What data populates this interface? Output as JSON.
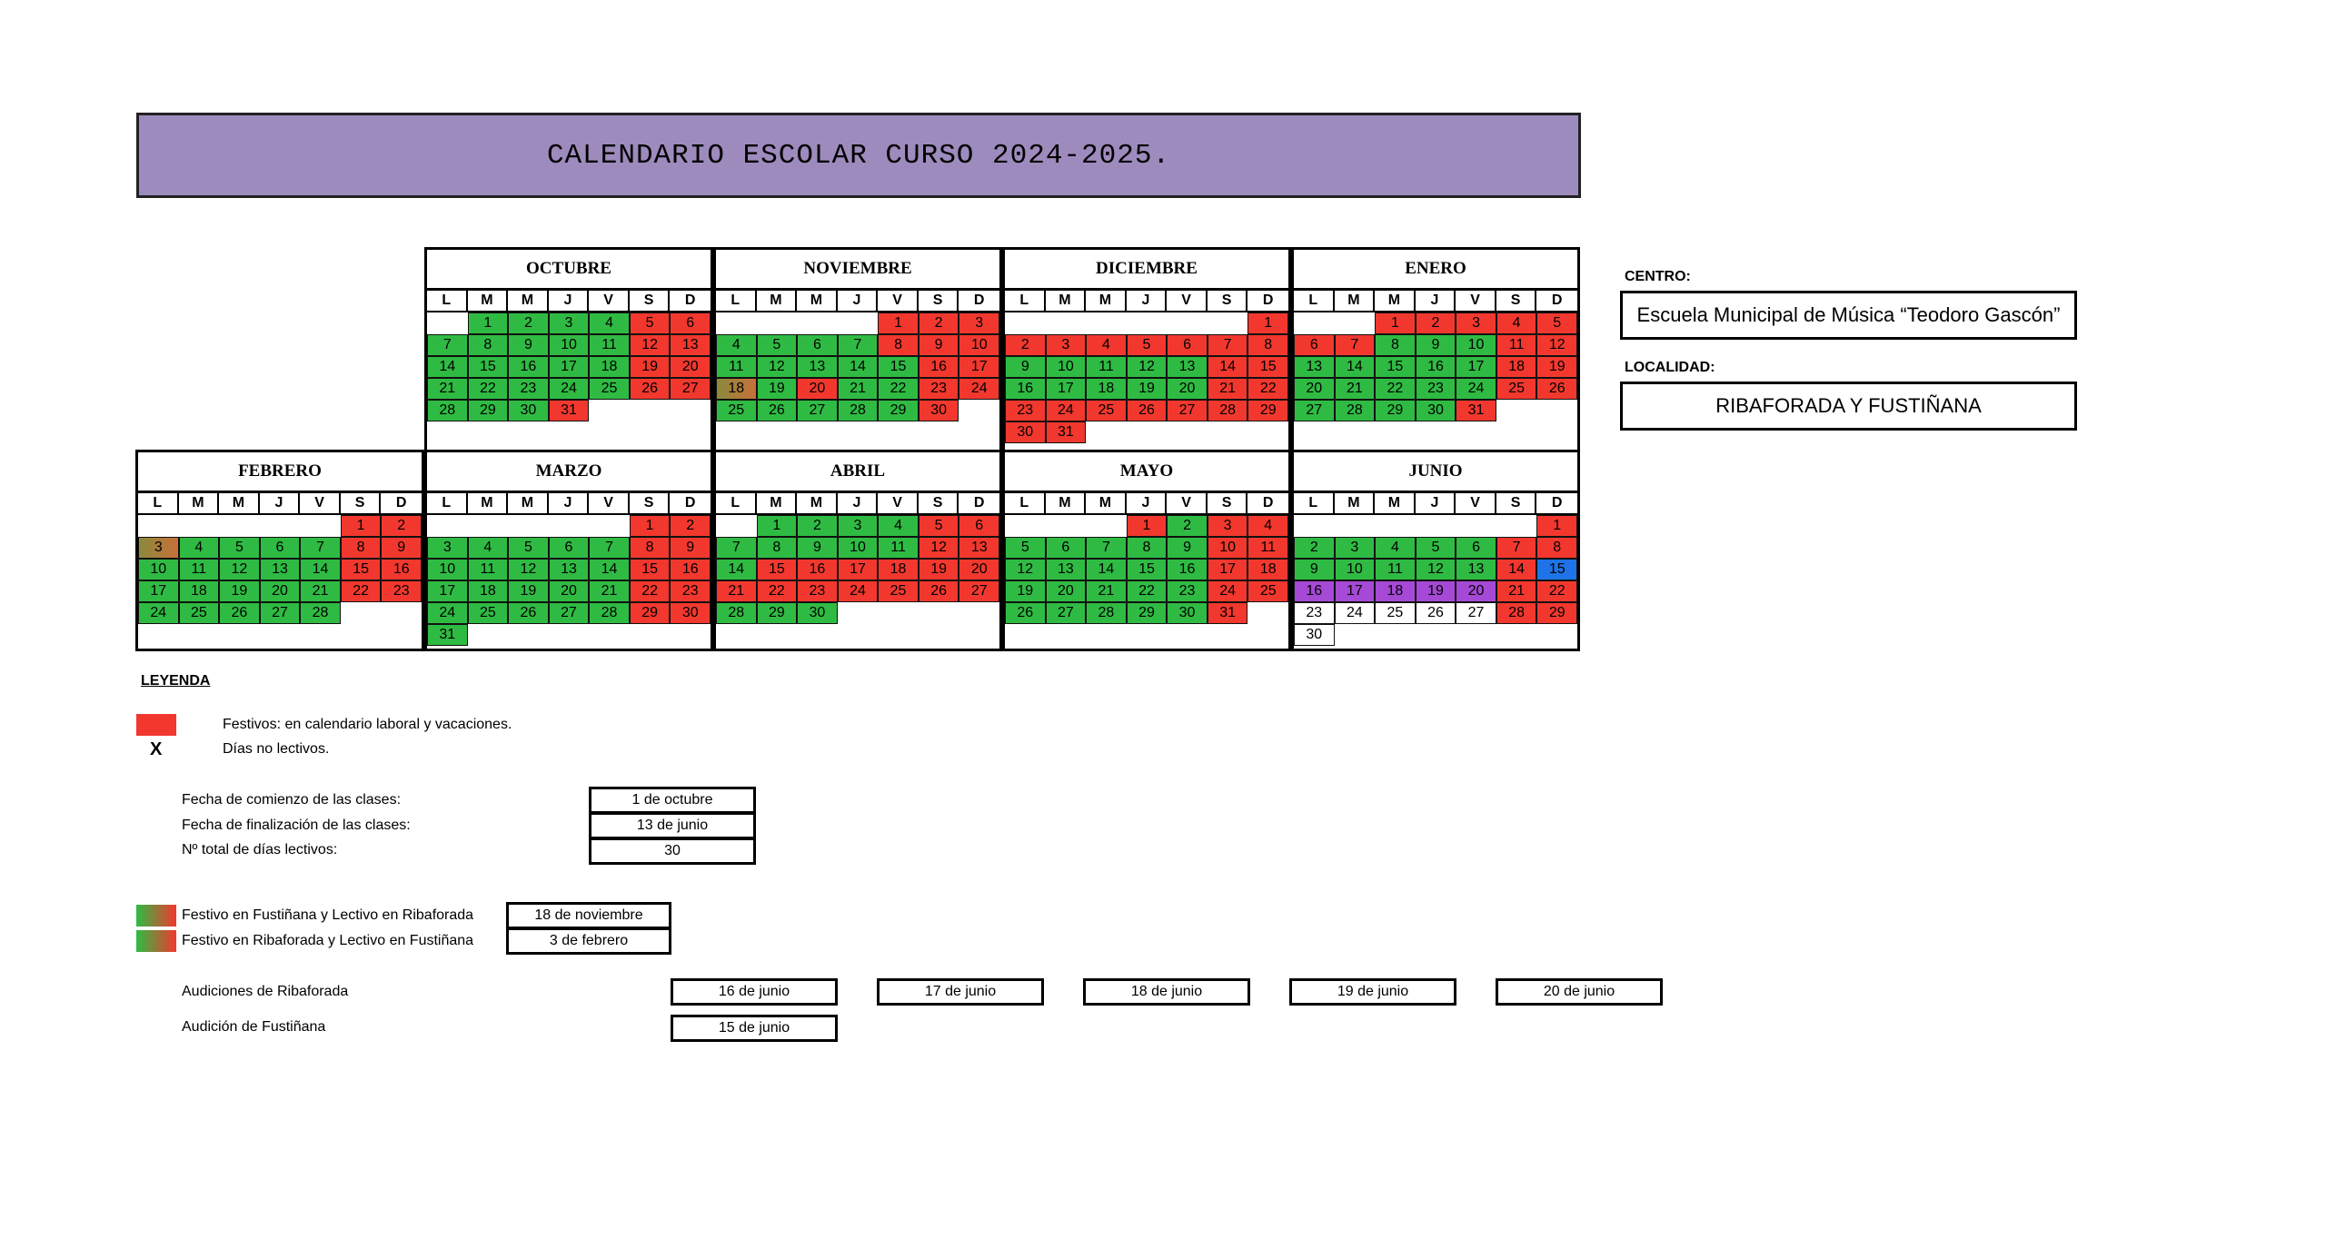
{
  "title": "CALENDARIO ESCOLAR CURSO 2024-2025.",
  "weekdays": [
    "L",
    "M",
    "M",
    "J",
    "V",
    "S",
    "D"
  ],
  "months": [
    {
      "name": "OCTUBRE",
      "offset": 1,
      "days": 31,
      "status": "GGGGRRGGGGGRRGGGGGRRGGGGGRRGGGR"
    },
    {
      "name": "NOVIEMBRE",
      "offset": 4,
      "days": 30,
      "status": "RRRGGGGRRRGGGGGRRMGRGGRRGGGGGR"
    },
    {
      "name": "DICIEMBRE",
      "offset": 6,
      "days": 31,
      "status": "RRRRRRRRGGGGGRRGGGGGRRRRRRRRRRR"
    },
    {
      "name": "ENERO",
      "offset": 2,
      "days": 31,
      "status": "RRRRRRRGGGRRGGGGGRRGGGGGRRGGGGR"
    },
    {
      "name": "FEBRERO",
      "offset": 5,
      "days": 28,
      "status": "RRMGGGGRRGGGGGRRGGGGGRRGGGGG"
    },
    {
      "name": "MARZO",
      "offset": 5,
      "days": 31,
      "status": "RRGGGGGRRGGGGGRRGGGGGRRGGGGGRRG"
    },
    {
      "name": "ABRIL",
      "offset": 1,
      "days": 30,
      "status": "GGGGRRGGGGGRRGRRRRRRRRRRRRRGGG"
    },
    {
      "name": "MAYO",
      "offset": 3,
      "days": 31,
      "status": "RGRRGGGGGRRGGGGGRRGGGGGRRGGGGGR"
    },
    {
      "name": "JUNIO",
      "offset": 6,
      "days": 30,
      "status": "RGGGGGRRGGGGGRBPPPPPRRWWWWWRRW"
    }
  ],
  "centro": {
    "label": "CENTRO:",
    "value": "Escuela Municipal de Música “Teodoro Gascón”"
  },
  "localidad": {
    "label": "LOCALIDAD:",
    "value": "RIBAFORADA Y FUSTIÑANA"
  },
  "leyenda": {
    "title": "LEYENDA",
    "festivos": "Festivos: en calendario laboral y vacaciones.",
    "x_mark": "X",
    "no_lectivos": "Días no lectivos."
  },
  "fechas": {
    "inicio_label": "Fecha de comienzo de las clases:",
    "inicio": "1 de octubre",
    "fin_label": "Fecha de finalización de las clases:",
    "fin": "13 de junio",
    "total_label": "Nº total de días lectivos:",
    "total": "30"
  },
  "especiales": {
    "fustinana_label": "Festivo en Fustiñana y Lectivo en Ribaforada",
    "fustinana": "18 de noviembre",
    "ribaforada_label": "Festivo en Ribaforada y Lectivo en Fustiñana",
    "ribaforada": "3 de febrero"
  },
  "audiciones": {
    "ribaforada_label": "Audiciones de Ribaforada",
    "ribaforada": [
      "16 de junio",
      "17 de junio",
      "18 de junio",
      "19 de junio",
      "20 de junio"
    ],
    "fustinana_label": "Audición de Fustiñana",
    "fustinana": "15 de junio"
  },
  "colors": {
    "green": "#2fbb43",
    "red": "#f2382e",
    "purple": "#a649d6",
    "blue": "#1f73e8",
    "title_bg": "#9e8bbd"
  }
}
